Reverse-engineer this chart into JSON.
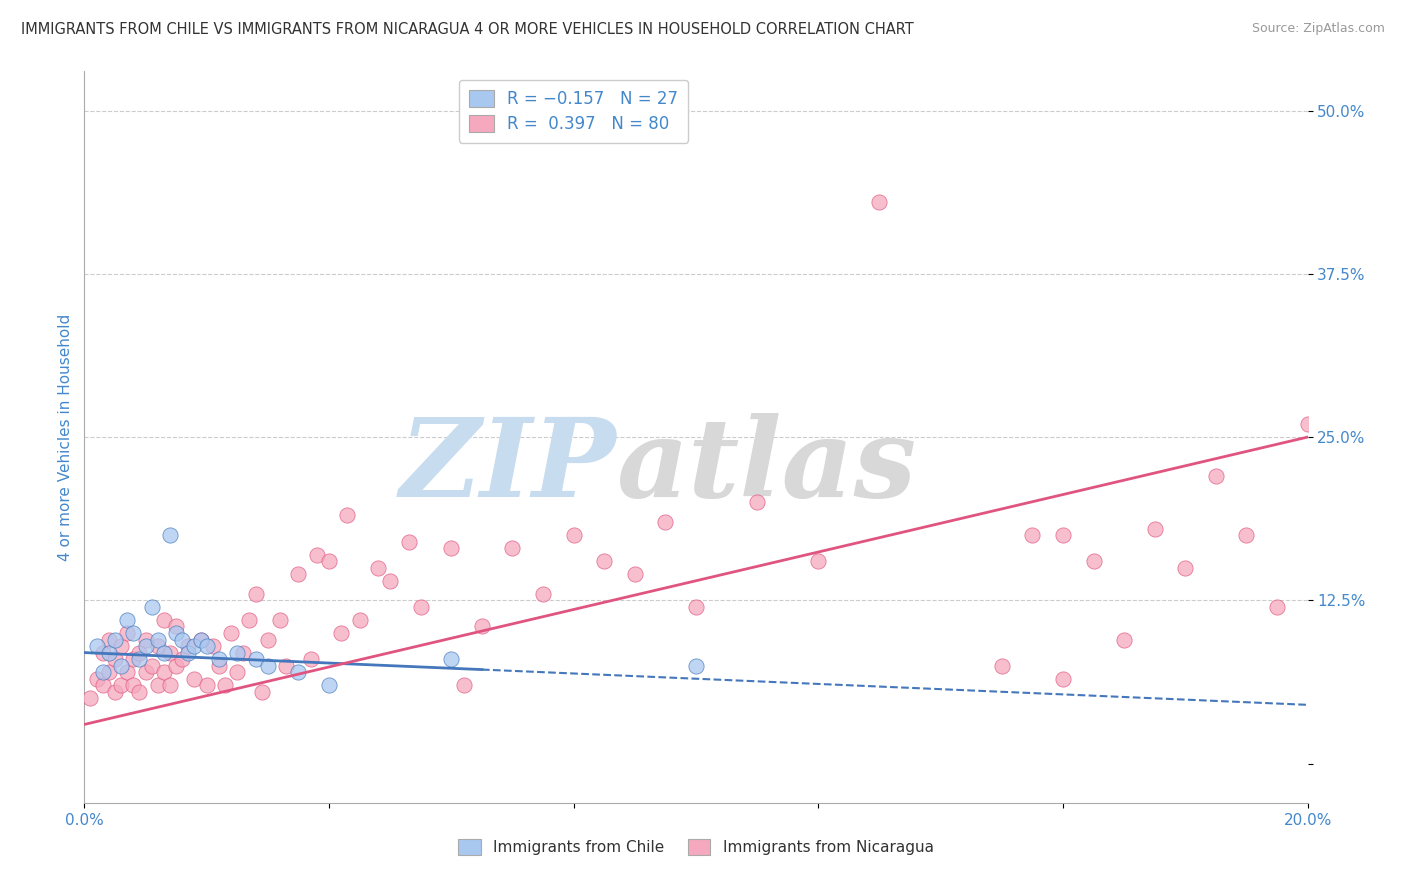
{
  "title": "IMMIGRANTS FROM CHILE VS IMMIGRANTS FROM NICARAGUA 4 OR MORE VEHICLES IN HOUSEHOLD CORRELATION CHART",
  "source": "Source: ZipAtlas.com",
  "ylabel": "4 or more Vehicles in Household",
  "xlim": [
    0.0,
    0.2
  ],
  "ylim": [
    -0.03,
    0.53
  ],
  "ytick_positions": [
    0.0,
    0.125,
    0.25,
    0.375,
    0.5
  ],
  "ytick_labels": [
    "",
    "12.5%",
    "25.0%",
    "37.5%",
    "50.0%"
  ],
  "xtick_positions": [
    0.0,
    0.04,
    0.08,
    0.12,
    0.16,
    0.2
  ],
  "xtick_labels": [
    "0.0%",
    "",
    "",
    "",
    "",
    "20.0%"
  ],
  "color_chile": "#A8C8F0",
  "color_nicaragua": "#F5A8BE",
  "line_color_chile": "#4477BB",
  "line_color_nicaragua": "#E05580",
  "background_color": "#FFFFFF",
  "grid_color": "#CCCCCC",
  "title_color": "#333333",
  "axis_label_color": "#4488CC",
  "tick_color": "#4488CC",
  "chile_intercept": 0.085,
  "chile_slope": -0.2,
  "nicaragua_intercept": 0.03,
  "nicaragua_slope": 1.1,
  "chile_scatter_x": [
    0.002,
    0.003,
    0.004,
    0.005,
    0.006,
    0.007,
    0.008,
    0.009,
    0.01,
    0.011,
    0.012,
    0.013,
    0.014,
    0.015,
    0.016,
    0.017,
    0.018,
    0.019,
    0.02,
    0.022,
    0.025,
    0.028,
    0.03,
    0.035,
    0.04,
    0.06,
    0.1
  ],
  "chile_scatter_y": [
    0.09,
    0.07,
    0.085,
    0.095,
    0.075,
    0.11,
    0.1,
    0.08,
    0.09,
    0.12,
    0.095,
    0.085,
    0.175,
    0.1,
    0.095,
    0.085,
    0.09,
    0.095,
    0.09,
    0.08,
    0.085,
    0.08,
    0.075,
    0.07,
    0.06,
    0.08,
    0.075
  ],
  "nicaragua_scatter_x": [
    0.001,
    0.002,
    0.003,
    0.003,
    0.004,
    0.004,
    0.005,
    0.005,
    0.006,
    0.006,
    0.007,
    0.007,
    0.008,
    0.008,
    0.009,
    0.009,
    0.01,
    0.01,
    0.011,
    0.012,
    0.012,
    0.013,
    0.013,
    0.014,
    0.014,
    0.015,
    0.015,
    0.016,
    0.017,
    0.018,
    0.019,
    0.02,
    0.021,
    0.022,
    0.023,
    0.024,
    0.025,
    0.026,
    0.027,
    0.028,
    0.029,
    0.03,
    0.032,
    0.033,
    0.035,
    0.037,
    0.038,
    0.04,
    0.042,
    0.043,
    0.045,
    0.048,
    0.05,
    0.053,
    0.055,
    0.06,
    0.062,
    0.065,
    0.07,
    0.075,
    0.08,
    0.085,
    0.09,
    0.095,
    0.1,
    0.11,
    0.12,
    0.13,
    0.15,
    0.155,
    0.16,
    0.16,
    0.165,
    0.17,
    0.175,
    0.18,
    0.185,
    0.19,
    0.195,
    0.2
  ],
  "nicaragua_scatter_y": [
    0.05,
    0.065,
    0.06,
    0.085,
    0.07,
    0.095,
    0.055,
    0.08,
    0.06,
    0.09,
    0.07,
    0.1,
    0.06,
    0.08,
    0.055,
    0.085,
    0.07,
    0.095,
    0.075,
    0.06,
    0.09,
    0.07,
    0.11,
    0.06,
    0.085,
    0.075,
    0.105,
    0.08,
    0.09,
    0.065,
    0.095,
    0.06,
    0.09,
    0.075,
    0.06,
    0.1,
    0.07,
    0.085,
    0.11,
    0.13,
    0.055,
    0.095,
    0.11,
    0.075,
    0.145,
    0.08,
    0.16,
    0.155,
    0.1,
    0.19,
    0.11,
    0.15,
    0.14,
    0.17,
    0.12,
    0.165,
    0.06,
    0.105,
    0.165,
    0.13,
    0.175,
    0.155,
    0.145,
    0.185,
    0.12,
    0.2,
    0.155,
    0.43,
    0.075,
    0.175,
    0.065,
    0.175,
    0.155,
    0.095,
    0.18,
    0.15,
    0.22,
    0.175,
    0.12,
    0.26
  ]
}
